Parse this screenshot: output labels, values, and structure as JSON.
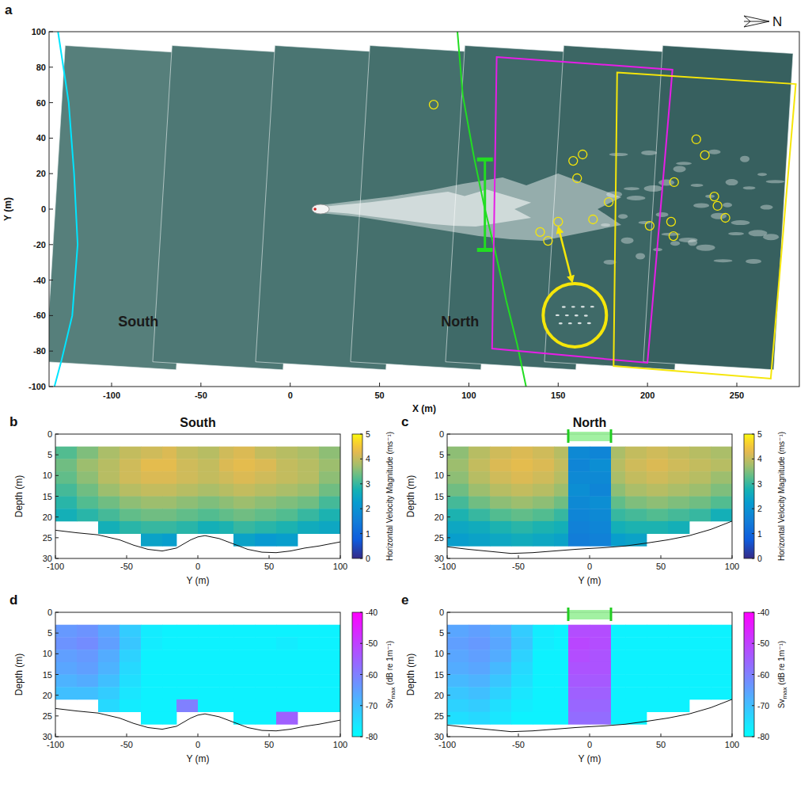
{
  "chart_data": [
    {
      "type": "map",
      "label": "a",
      "xlabel": "X (m)",
      "ylabel": "Y (m)",
      "xlim": [
        -135,
        285
      ],
      "ylim": [
        -100,
        100
      ],
      "xticks": [
        -100,
        -50,
        0,
        50,
        100,
        150,
        200,
        250
      ],
      "yticks": [
        -100,
        -80,
        -60,
        -40,
        -20,
        0,
        20,
        40,
        60,
        80,
        100
      ],
      "compass": "N",
      "annotations": [
        {
          "text": "South",
          "x": -85,
          "y": -66
        },
        {
          "text": "North",
          "x": 95,
          "y": -66
        }
      ],
      "series": [
        {
          "type": "line",
          "color": "#00e5ff",
          "x": [
            -130,
            -124,
            -121,
            -119,
            -122,
            -128,
            -132
          ],
          "y": [
            100,
            60,
            20,
            -20,
            -60,
            -85,
            -100
          ]
        },
        {
          "type": "line",
          "color": "#22dd22",
          "x": [
            93.6,
            96.6,
            103,
            108.6,
            115,
            121,
            127,
            132
          ],
          "y": [
            100,
            64,
            28.6,
            1.8,
            -25,
            -51.8,
            -76,
            -100
          ]
        },
        {
          "type": "segment",
          "marker": "cap",
          "color": "#22dd22",
          "x": [
            109,
            109
          ],
          "y": [
            28,
            -23
          ]
        },
        {
          "type": "polygon",
          "color": "#e61ee6",
          "x": [
            115.6,
            214,
            200,
            113
          ],
          "y": [
            85.7,
            78.6,
            -86.6,
            -78.6
          ]
        },
        {
          "type": "polygon",
          "color": "#f5e60a",
          "x": [
            183,
            283,
            269,
            181
          ],
          "y": [
            77,
            70.5,
            -95.5,
            -88.4
          ]
        },
        {
          "type": "scatter",
          "marker": "circle",
          "color": "#f5e60a",
          "x": [
            80.3,
            158.4,
            163.7,
            160.6,
            150.0,
            139.9,
            144.3,
            169.5,
            178.3,
            201.2,
            213.2,
            214.5,
            214.9,
            227.3,
            232.1,
            237.4,
            239.2,
            243.6
          ],
          "y": [
            58.9,
            27.2,
            30.8,
            17.4,
            -7.1,
            -12.9,
            -17.9,
            -5.8,
            4.0,
            -9.4,
            -7.1,
            -15.2,
            15.2,
            39.3,
            30.4,
            7.1,
            1.8,
            -4.9
          ]
        }
      ]
    },
    {
      "type": "heatmap",
      "label": "b",
      "title": "South",
      "xlabel": "Y (m)",
      "ylabel": "Depth (m)",
      "xlim": [
        -100,
        100
      ],
      "ylim": [
        0,
        30
      ],
      "xticks": [
        -100,
        -50,
        0,
        50,
        100
      ],
      "yticks": [
        0,
        5,
        10,
        15,
        20,
        25,
        30
      ],
      "x_edges": [
        -100,
        -85,
        -70,
        -55,
        -40,
        -25,
        -15,
        0,
        15,
        25,
        40,
        55,
        70,
        85,
        100
      ],
      "y_edges": [
        3,
        6,
        9,
        12,
        15,
        18,
        21,
        24,
        27
      ],
      "cells": [
        [
          3.2,
          3.5,
          3.8,
          4.0,
          4.1,
          4.2,
          4.0,
          3.9,
          4.1,
          4.2,
          4.0,
          3.9,
          3.8,
          3.6
        ],
        [
          3.4,
          3.7,
          3.9,
          4.1,
          4.3,
          4.3,
          4.1,
          4.0,
          4.2,
          4.3,
          4.2,
          4.0,
          3.9,
          3.7
        ],
        [
          3.3,
          3.6,
          3.9,
          4.1,
          4.2,
          4.2,
          4.1,
          4.0,
          4.1,
          4.2,
          4.1,
          4.0,
          3.9,
          3.6
        ],
        [
          3.1,
          3.4,
          3.7,
          3.9,
          4.0,
          4.0,
          3.9,
          3.8,
          3.9,
          4.0,
          3.9,
          3.8,
          3.7,
          3.4
        ],
        [
          2.9,
          3.2,
          3.4,
          3.6,
          3.7,
          3.7,
          3.6,
          3.5,
          3.6,
          3.7,
          3.6,
          3.5,
          3.4,
          3.1
        ],
        [
          2.7,
          2.9,
          3.1,
          3.3,
          3.4,
          3.4,
          3.3,
          3.2,
          3.3,
          3.4,
          3.3,
          3.2,
          3.0,
          2.8
        ],
        [
          null,
          null,
          2.7,
          2.9,
          3.0,
          3.0,
          2.9,
          2.7,
          2.8,
          3.0,
          2.9,
          2.8,
          2.6,
          2.5
        ],
        [
          null,
          null,
          null,
          null,
          2.4,
          2.3,
          null,
          null,
          null,
          2.4,
          2.2,
          2.3,
          null,
          null
        ]
      ],
      "bottom": {
        "x": [
          -100,
          -85,
          -70,
          -55,
          -45,
          -35,
          -25,
          -15,
          -5,
          0,
          5,
          15,
          25,
          35,
          45,
          55,
          65,
          75,
          85,
          100
        ],
        "depth": [
          23.2,
          23.8,
          24.3,
          25.5,
          26.8,
          27.8,
          28.2,
          27.5,
          25.5,
          24.8,
          24.5,
          25.2,
          26.5,
          27.8,
          28.5,
          28.6,
          28.2,
          27.5,
          27,
          26
        ]
      },
      "colorbar": {
        "label": {
          "text": "Horizontal Velocity Magnitude (ms⁻¹)"
        },
        "lim": [
          0,
          5
        ],
        "ticks": [
          0,
          1,
          2,
          3,
          4,
          5
        ]
      }
    },
    {
      "type": "heatmap",
      "label": "c",
      "title": "North",
      "xlabel": "Y (m)",
      "ylabel": "Depth (m)",
      "xlim": [
        -100,
        100
      ],
      "ylim": [
        0,
        30
      ],
      "xticks": [
        -100,
        -50,
        0,
        50,
        100
      ],
      "yticks": [
        0,
        5,
        10,
        15,
        20,
        25,
        30
      ],
      "highlight": [
        -15,
        15
      ],
      "x_edges": [
        -100,
        -85,
        -70,
        -55,
        -40,
        -25,
        -15,
        0,
        15,
        25,
        40,
        55,
        70,
        85,
        100
      ],
      "y_edges": [
        3,
        6,
        9,
        12,
        15,
        18,
        21,
        24,
        27
      ],
      "cells": [
        [
          3.6,
          3.9,
          4.1,
          4.2,
          4.1,
          3.9,
          1.8,
          1.7,
          3.8,
          4.0,
          4.1,
          4.0,
          3.9,
          3.8
        ],
        [
          3.7,
          4.0,
          4.2,
          4.3,
          4.2,
          4.0,
          1.7,
          1.9,
          3.9,
          4.1,
          4.2,
          4.1,
          4.0,
          3.9
        ],
        [
          3.6,
          3.9,
          4.1,
          4.2,
          4.1,
          3.9,
          1.8,
          1.8,
          3.8,
          4.0,
          4.1,
          4.0,
          3.9,
          3.7
        ],
        [
          3.4,
          3.7,
          3.9,
          4.0,
          3.9,
          3.7,
          1.9,
          1.7,
          3.6,
          3.8,
          3.9,
          3.8,
          3.7,
          3.5
        ],
        [
          3.1,
          3.4,
          3.6,
          3.7,
          3.6,
          3.4,
          1.8,
          1.9,
          3.3,
          3.5,
          3.6,
          3.5,
          3.4,
          3.2
        ],
        [
          2.8,
          3.0,
          3.2,
          3.3,
          3.2,
          3.0,
          1.7,
          1.8,
          3.0,
          3.1,
          3.2,
          3.1,
          3.0,
          2.7
        ],
        [
          2.5,
          2.6,
          2.8,
          2.9,
          2.8,
          2.7,
          1.6,
          1.7,
          2.7,
          2.8,
          2.8,
          2.7,
          null,
          null
        ],
        [
          2.3,
          2.4,
          2.5,
          2.6,
          2.5,
          2.4,
          1.5,
          1.6,
          2.3,
          2.4,
          null,
          null,
          null,
          null
        ]
      ],
      "bottom": {
        "x": [
          -100,
          -85,
          -70,
          -55,
          -40,
          -25,
          -10,
          0,
          10,
          25,
          40,
          55,
          70,
          85,
          100
        ],
        "depth": [
          27.2,
          27.8,
          28.3,
          28.8,
          28.6,
          28.2,
          27.8,
          27.6,
          27.4,
          27,
          26.3,
          25.5,
          24.5,
          23,
          21
        ]
      },
      "colorbar": {
        "label": {
          "text": "Horizontal Velocity Magnitude (ms⁻¹)"
        },
        "lim": [
          0,
          5
        ],
        "ticks": [
          0,
          1,
          2,
          3,
          4,
          5
        ]
      }
    },
    {
      "type": "heatmap",
      "label": "d",
      "xlabel": "Y (m)",
      "ylabel": "Depth (m)",
      "xlim": [
        -100,
        100
      ],
      "ylim": [
        0,
        30
      ],
      "xticks": [
        -100,
        -50,
        0,
        50,
        100
      ],
      "yticks": [
        0,
        5,
        10,
        15,
        20,
        25,
        30
      ],
      "x_edges": [
        -100,
        -85,
        -70,
        -55,
        -40,
        -25,
        -15,
        0,
        15,
        25,
        40,
        55,
        70,
        85,
        100
      ],
      "y_edges": [
        3,
        6,
        9,
        12,
        15,
        18,
        21,
        24,
        27
      ],
      "cells": [
        [
          -64,
          -63,
          -66,
          -72,
          -77,
          -78,
          -78,
          -78,
          -78,
          -78,
          -78,
          -78,
          -78,
          -78
        ],
        [
          -63,
          -62,
          -65,
          -71,
          -77,
          -78,
          -78,
          -78,
          -78,
          -78,
          -78,
          -77,
          -78,
          -78
        ],
        [
          -65,
          -64,
          -67,
          -73,
          -78,
          -78,
          -78,
          -78,
          -78,
          -78,
          -78,
          -78,
          -78,
          -78
        ],
        [
          -66,
          -65,
          -68,
          -74,
          -78,
          -78,
          -78,
          -78,
          -78,
          -78,
          -78,
          -78,
          -78,
          -78
        ],
        [
          -68,
          -67,
          -70,
          -75,
          -78,
          -78,
          -78,
          -78,
          -78,
          -78,
          -78,
          -78,
          -78,
          -78
        ],
        [
          -70,
          -70,
          -72,
          -76,
          -78,
          -78,
          -78,
          -78,
          -78,
          -78,
          -78,
          -78,
          -78,
          -78
        ],
        [
          null,
          null,
          -74,
          -77,
          -78,
          -78,
          -60,
          -78,
          -78,
          -78,
          -78,
          -78,
          -78,
          -78
        ],
        [
          null,
          null,
          null,
          null,
          -78,
          -78,
          null,
          null,
          null,
          -78,
          -78,
          -55,
          null,
          null
        ]
      ],
      "bottom": {
        "x": [
          -100,
          -85,
          -70,
          -55,
          -45,
          -35,
          -25,
          -15,
          -5,
          0,
          5,
          15,
          25,
          35,
          45,
          55,
          65,
          75,
          85,
          100
        ],
        "depth": [
          23.2,
          23.8,
          24.3,
          25.5,
          26.8,
          27.8,
          28.2,
          27.5,
          25.5,
          24.8,
          24.5,
          25.2,
          26.5,
          27.8,
          28.5,
          28.6,
          28.2,
          27.5,
          27,
          26
        ]
      },
      "colorbar": {
        "label": {
          "text": "Sv",
          "sub": "max",
          "after": " (dB re 1m⁻¹)"
        },
        "lim": [
          -80,
          -40
        ],
        "ticks": [
          -80,
          -70,
          -60,
          -50,
          -40
        ]
      }
    },
    {
      "type": "heatmap",
      "label": "e",
      "xlabel": "Y (m)",
      "ylabel": "Depth (m)",
      "xlim": [
        -100,
        100
      ],
      "ylim": [
        0,
        30
      ],
      "xticks": [
        -100,
        -50,
        0,
        50,
        100
      ],
      "yticks": [
        0,
        5,
        10,
        15,
        20,
        25,
        30
      ],
      "highlight": [
        -15,
        15
      ],
      "x_edges": [
        -100,
        -85,
        -70,
        -55,
        -40,
        -25,
        -15,
        0,
        15,
        25,
        40,
        55,
        70,
        85,
        100
      ],
      "y_edges": [
        3,
        6,
        9,
        12,
        15,
        18,
        21,
        24,
        27
      ],
      "cells": [
        [
          -66,
          -65,
          -67,
          -72,
          -77,
          -78,
          -52,
          -52,
          -78,
          -78,
          -78,
          -78,
          -78,
          -78
        ],
        [
          -65,
          -64,
          -66,
          -71,
          -77,
          -78,
          -51,
          -52,
          -78,
          -78,
          -78,
          -78,
          -78,
          -78
        ],
        [
          -66,
          -65,
          -67,
          -73,
          -78,
          -78,
          -52,
          -53,
          -78,
          -78,
          -78,
          -78,
          -78,
          -78
        ],
        [
          -67,
          -66,
          -69,
          -74,
          -78,
          -78,
          -53,
          -53,
          -78,
          -78,
          -78,
          -78,
          -78,
          -78
        ],
        [
          -69,
          -68,
          -71,
          -75,
          -78,
          -78,
          -54,
          -54,
          -78,
          -78,
          -78,
          -78,
          -78,
          -78
        ],
        [
          -71,
          -70,
          -73,
          -76,
          -78,
          -78,
          -55,
          -55,
          -78,
          -78,
          -78,
          -78,
          -78,
          -78
        ],
        [
          -73,
          -72,
          -75,
          -77,
          -78,
          -78,
          -56,
          -56,
          -78,
          -78,
          -78,
          -78,
          null,
          null
        ],
        [
          -75,
          -74,
          -76,
          -78,
          -78,
          -78,
          -57,
          -57,
          -78,
          -78,
          null,
          null,
          null,
          null
        ]
      ],
      "bottom": {
        "x": [
          -100,
          -85,
          -70,
          -55,
          -40,
          -25,
          -10,
          0,
          10,
          25,
          40,
          55,
          70,
          85,
          100
        ],
        "depth": [
          27.2,
          27.8,
          28.3,
          28.8,
          28.6,
          28.2,
          27.8,
          27.6,
          27.4,
          27,
          26.3,
          25.5,
          24.5,
          23,
          21
        ]
      },
      "colorbar": {
        "label": {
          "text": "Sv",
          "sub": "max",
          "after": " (dB re 1m⁻¹)"
        },
        "lim": [
          -80,
          -40
        ],
        "ticks": [
          -80,
          -70,
          -60,
          -50,
          -40
        ]
      }
    }
  ]
}
